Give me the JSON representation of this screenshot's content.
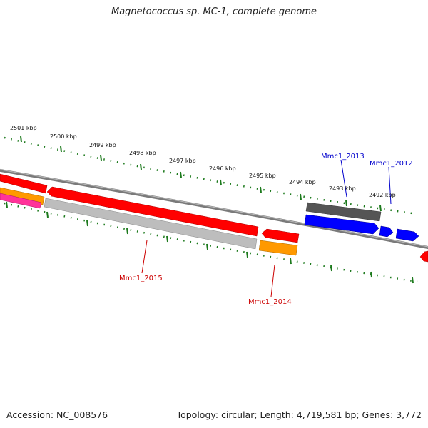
{
  "title": "Magnetococcus sp. MC-1, complete genome",
  "footer": {
    "accession_label": "Accession:",
    "accession_value": "NC_008576",
    "topology_label": "Topology:",
    "topology_value": "circular",
    "length_label": "Length:",
    "length_value": "4,719,581 bp",
    "genes_label": "Genes:",
    "genes_value": "3,772"
  },
  "ticks": [
    "2501 kbp",
    "2500 kbp",
    "2499 kbp",
    "2498 kbp",
    "2497 kbp",
    "2496 kbp",
    "2495 kbp",
    "2494 kbp",
    "2493 kbp",
    "2492 kbp"
  ],
  "gene_labels": [
    {
      "id": "Mmc1_2015",
      "color": "#cc0000"
    },
    {
      "id": "Mmc1_2014",
      "color": "#cc0000"
    },
    {
      "id": "Mmc1_2013",
      "color": "#0000cc"
    },
    {
      "id": "Mmc1_2012",
      "color": "#0000cc"
    }
  ],
  "colors": {
    "backbone": "#7a7a7a",
    "tick": "#1d7a1d",
    "gene_red": "#ff0000",
    "gene_gray": "#bdbdbd",
    "gene_orange": "#ff9900",
    "gene_blue": "#0000ff",
    "gene_dark": "#555555",
    "gene_pink": "#ff3399"
  }
}
